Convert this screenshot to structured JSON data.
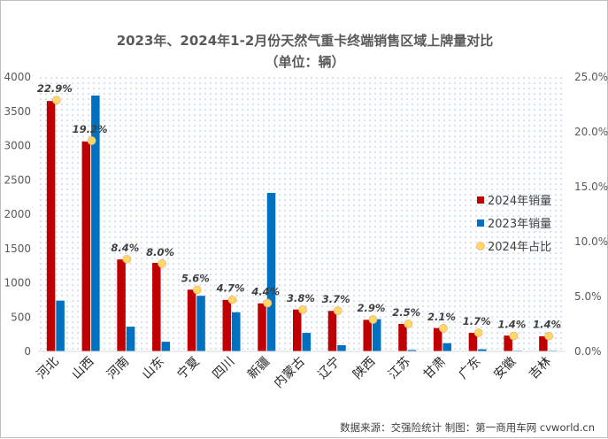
{
  "title_line1": "2023年、2024年1-2月份天然气重卡终端销售区域上牌量对比",
  "title_line2": "（单位：辆）",
  "source": "数据来源：交强险统计  制图：第一商用车网 cvworld.cn",
  "colors": {
    "s2024": "#c00000",
    "s2023": "#0070c0",
    "ratio": "#ffd966",
    "ratioStroke": "#f4b183"
  },
  "chart_data": {
    "type": "bar",
    "categories": [
      "河北",
      "山西",
      "河南",
      "山东",
      "宁夏",
      "四川",
      "新疆",
      "内蒙古",
      "辽宁",
      "陕西",
      "江苏",
      "甘肃",
      "广东",
      "安徽",
      "吉林"
    ],
    "series": [
      {
        "name": "2024年销量",
        "values": [
          3650,
          3060,
          1340,
          1290,
          900,
          750,
          700,
          610,
          590,
          460,
          400,
          340,
          270,
          230,
          220
        ]
      },
      {
        "name": "2023年销量",
        "values": [
          740,
          3730,
          360,
          140,
          810,
          570,
          2310,
          270,
          90,
          470,
          20,
          120,
          30,
          10,
          10
        ]
      },
      {
        "name": "2024年占比",
        "values": [
          22.9,
          19.2,
          8.4,
          8.0,
          5.6,
          4.7,
          4.4,
          3.8,
          3.7,
          2.9,
          2.5,
          2.1,
          1.7,
          1.4,
          1.4
        ]
      }
    ],
    "ratio_labels": [
      "22.9%",
      "19.2%",
      "8.4%",
      "8.0%",
      "5.6%",
      "4.7%",
      "4.4%",
      "3.8%",
      "3.7%",
      "2.9%",
      "2.5%",
      "2.1%",
      "1.7%",
      "1.4%",
      "1.4%"
    ],
    "ylim": [
      0,
      4000
    ],
    "y2lim": [
      0,
      25
    ],
    "yticks": [
      "0",
      "500",
      "1000",
      "1500",
      "2000",
      "2500",
      "3000",
      "3500",
      "4000"
    ],
    "y2ticks": [
      "0.0%",
      "5.0%",
      "10.0%",
      "15.0%",
      "20.0%",
      "25.0%"
    ],
    "legend_position": "right"
  }
}
